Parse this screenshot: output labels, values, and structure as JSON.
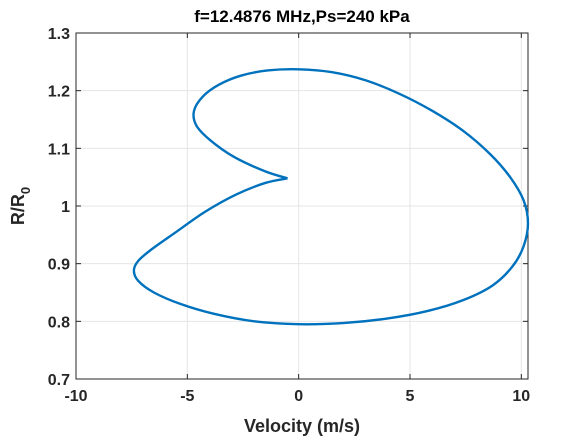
{
  "chart_data": {
    "type": "line",
    "title": "f=12.4876 MHz,Ps=240 kPa",
    "xlabel": "Velocity (m/s)",
    "ylabel_main": "R/R",
    "ylabel_sub": "0",
    "xlim": [
      -10,
      10.3
    ],
    "ylim": [
      0.7,
      1.3
    ],
    "xticks": [
      -10,
      -5,
      0,
      5,
      10
    ],
    "yticks": [
      0.7,
      0.8,
      0.9,
      1.0,
      1.1,
      1.2,
      1.3
    ],
    "xtick_labels": [
      "-10",
      "-5",
      "0",
      "5",
      "10"
    ],
    "ytick_labels": [
      "0.7",
      "0.8",
      "0.9",
      "1",
      "1.1",
      "1.2",
      "1.3"
    ],
    "grid": true,
    "line_color": "#0072BD",
    "series": [
      {
        "x": [
          -0.5,
          -1.5,
          -2.8,
          -4.2,
          -5.5,
          -6.6,
          -7.2,
          -7.4,
          -7.2,
          -6.5,
          -5.3,
          -3.8,
          -2.0,
          0.0,
          2.0,
          4.0,
          5.8,
          7.4,
          8.7,
          9.6,
          10.1,
          10.3,
          10.1,
          9.5,
          8.6,
          7.4,
          6.0,
          4.5,
          3.0,
          1.5,
          0.0,
          -1.4,
          -2.6,
          -3.6,
          -4.3,
          -4.7,
          -4.6,
          -4.0,
          -2.9,
          -1.5,
          -0.5
        ],
        "y": [
          1.048,
          1.04,
          1.02,
          0.99,
          0.955,
          0.925,
          0.905,
          0.888,
          0.87,
          0.85,
          0.83,
          0.813,
          0.8,
          0.795,
          0.797,
          0.805,
          0.818,
          0.837,
          0.862,
          0.895,
          0.93,
          0.97,
          1.01,
          1.05,
          1.09,
          1.13,
          1.165,
          1.195,
          1.218,
          1.232,
          1.237,
          1.235,
          1.226,
          1.21,
          1.19,
          1.165,
          1.14,
          1.115,
          1.085,
          1.06,
          1.048
        ]
      }
    ]
  }
}
